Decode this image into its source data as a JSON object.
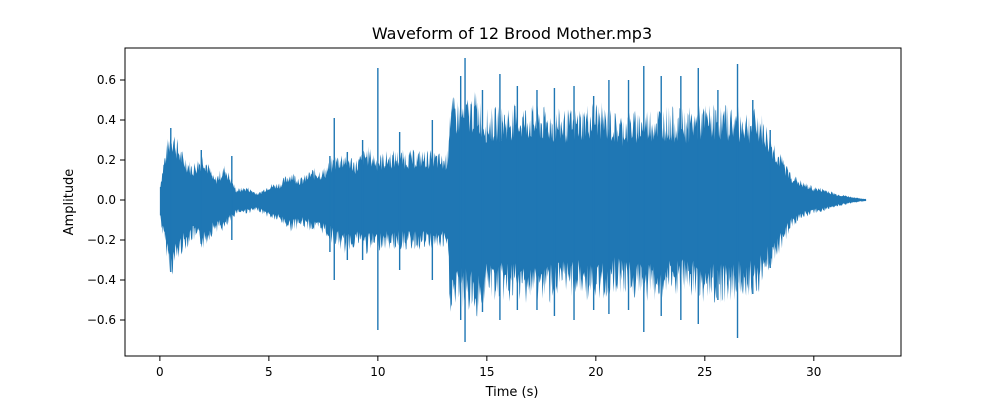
{
  "chart_data": {
    "type": "line",
    "title": "Waveform of 12 Brood Mother.mp3",
    "xlabel": "Time (s)",
    "ylabel": "Amplitude",
    "xlim": [
      -1.6,
      34.0
    ],
    "ylim": [
      -0.78,
      0.76
    ],
    "xticks": [
      0,
      5,
      10,
      15,
      20,
      25,
      30
    ],
    "yticks": [
      -0.6,
      -0.4,
      -0.2,
      0.0,
      0.2,
      0.4,
      0.6
    ],
    "xtick_labels": [
      "0",
      "5",
      "10",
      "15",
      "20",
      "25",
      "30"
    ],
    "ytick_labels": [
      "−0.6",
      "−0.4",
      "−0.2",
      "0.0",
      "0.2",
      "0.4",
      "0.6"
    ],
    "grid": false,
    "legend": "none",
    "color": "#1f77b4",
    "series": [
      {
        "duration": 32.4,
        "envelope_time": [
          0.0,
          0.2,
          0.5,
          0.7,
          1.0,
          1.5,
          2.0,
          2.5,
          3.0,
          3.5,
          4.0,
          4.5,
          5.0,
          5.5,
          6.0,
          6.5,
          7.0,
          7.5,
          8.0,
          8.5,
          9.0,
          9.5,
          10.0,
          10.5,
          11.0,
          11.5,
          12.0,
          12.5,
          13.0,
          13.2,
          13.3,
          14.0,
          14.5,
          15.0,
          16.0,
          17.0,
          18.0,
          19.0,
          20.0,
          21.0,
          22.0,
          23.0,
          24.0,
          25.0,
          26.0,
          27.0,
          27.5,
          28.0,
          28.5,
          29.0,
          29.5,
          30.0,
          30.5,
          31.0,
          31.5,
          32.0,
          32.4
        ],
        "envelope_max": [
          0.07,
          0.2,
          0.34,
          0.3,
          0.22,
          0.16,
          0.22,
          0.1,
          0.16,
          0.05,
          0.06,
          0.03,
          0.07,
          0.08,
          0.13,
          0.1,
          0.14,
          0.14,
          0.2,
          0.22,
          0.18,
          0.24,
          0.2,
          0.22,
          0.22,
          0.22,
          0.22,
          0.22,
          0.2,
          0.22,
          0.45,
          0.45,
          0.48,
          0.4,
          0.42,
          0.42,
          0.4,
          0.4,
          0.44,
          0.38,
          0.4,
          0.42,
          0.4,
          0.42,
          0.42,
          0.4,
          0.4,
          0.3,
          0.2,
          0.12,
          0.08,
          0.06,
          0.05,
          0.03,
          0.02,
          0.01,
          0.005
        ],
        "envelope_min": [
          -0.08,
          -0.2,
          -0.35,
          -0.3,
          -0.24,
          -0.18,
          -0.22,
          -0.14,
          -0.14,
          -0.06,
          -0.06,
          -0.05,
          -0.08,
          -0.1,
          -0.14,
          -0.12,
          -0.14,
          -0.15,
          -0.2,
          -0.24,
          -0.2,
          -0.24,
          -0.22,
          -0.22,
          -0.22,
          -0.22,
          -0.22,
          -0.22,
          -0.22,
          -0.24,
          -0.5,
          -0.48,
          -0.52,
          -0.44,
          -0.45,
          -0.45,
          -0.45,
          -0.42,
          -0.46,
          -0.4,
          -0.45,
          -0.44,
          -0.42,
          -0.45,
          -0.45,
          -0.42,
          -0.4,
          -0.3,
          -0.22,
          -0.12,
          -0.08,
          -0.06,
          -0.05,
          -0.03,
          -0.02,
          -0.01,
          -0.005
        ],
        "peaks": [
          {
            "t": 0.5,
            "max": 0.36,
            "min": -0.36
          },
          {
            "t": 1.9,
            "max": 0.25,
            "min": -0.22
          },
          {
            "t": 3.3,
            "max": 0.22,
            "min": -0.2
          },
          {
            "t": 7.8,
            "max": 0.22,
            "min": -0.26
          },
          {
            "t": 8.6,
            "max": 0.24,
            "min": -0.3
          },
          {
            "t": 8.0,
            "max": 0.41,
            "min": -0.4
          },
          {
            "t": 9.3,
            "max": 0.3,
            "min": -0.3
          },
          {
            "t": 10.0,
            "max": 0.66,
            "min": -0.65
          },
          {
            "t": 11.0,
            "max": 0.34,
            "min": -0.35
          },
          {
            "t": 12.5,
            "max": 0.4,
            "min": -0.4
          },
          {
            "t": 13.8,
            "max": 0.62,
            "min": -0.6
          },
          {
            "t": 14.0,
            "max": 0.71,
            "min": -0.71
          },
          {
            "t": 14.8,
            "max": 0.55,
            "min": -0.56
          },
          {
            "t": 15.6,
            "max": 0.63,
            "min": -0.6
          },
          {
            "t": 16.4,
            "max": 0.57,
            "min": -0.55
          },
          {
            "t": 17.3,
            "max": 0.55,
            "min": -0.55
          },
          {
            "t": 18.1,
            "max": 0.56,
            "min": -0.58
          },
          {
            "t": 19.0,
            "max": 0.57,
            "min": -0.6
          },
          {
            "t": 19.9,
            "max": 0.52,
            "min": -0.55
          },
          {
            "t": 20.6,
            "max": 0.6,
            "min": -0.57
          },
          {
            "t": 21.5,
            "max": 0.6,
            "min": -0.55
          },
          {
            "t": 22.2,
            "max": 0.67,
            "min": -0.66
          },
          {
            "t": 23.0,
            "max": 0.62,
            "min": -0.58
          },
          {
            "t": 23.9,
            "max": 0.62,
            "min": -0.6
          },
          {
            "t": 24.7,
            "max": 0.66,
            "min": -0.62
          },
          {
            "t": 25.6,
            "max": 0.55,
            "min": -0.5
          },
          {
            "t": 26.5,
            "max": 0.68,
            "min": -0.69
          },
          {
            "t": 27.2,
            "max": 0.5,
            "min": -0.47
          },
          {
            "t": 28.0,
            "max": 0.35,
            "min": -0.34
          }
        ]
      }
    ]
  }
}
